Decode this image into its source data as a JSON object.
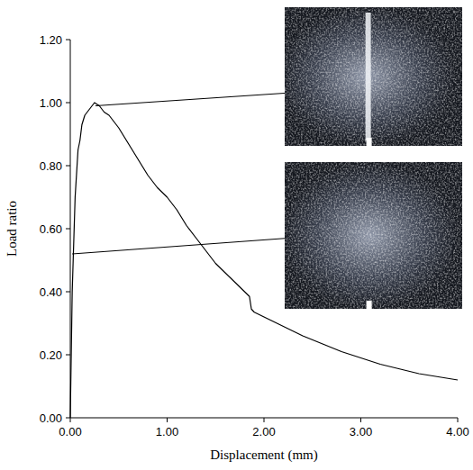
{
  "chart_data": {
    "type": "line",
    "x_label": "Displacement (mm)",
    "y_label": "Load ratio",
    "color": "#000000",
    "x": [
      0,
      0.02,
      0.05,
      0.08,
      0.1,
      0.12,
      0.15,
      0.2,
      0.25,
      0.3,
      0.35,
      0.4,
      0.5,
      0.6,
      0.7,
      0.8,
      0.9,
      1.0,
      1.1,
      1.2,
      1.3,
      1.4,
      1.5,
      1.6,
      1.7,
      1.8,
      1.85,
      1.87,
      1.9,
      2.0,
      2.2,
      2.4,
      2.6,
      2.8,
      3.0,
      3.2,
      3.4,
      3.6,
      3.8,
      4.0
    ],
    "values": [
      0,
      0.4,
      0.7,
      0.85,
      0.88,
      0.93,
      0.96,
      0.98,
      1.0,
      0.99,
      0.97,
      0.96,
      0.92,
      0.87,
      0.82,
      0.77,
      0.73,
      0.7,
      0.66,
      0.61,
      0.57,
      0.53,
      0.49,
      0.46,
      0.43,
      0.4,
      0.385,
      0.345,
      0.335,
      0.32,
      0.29,
      0.26,
      0.235,
      0.21,
      0.19,
      0.17,
      0.155,
      0.14,
      0.13,
      0.12
    ],
    "xlim": [
      0,
      4
    ],
    "ylim": [
      0,
      1.2
    ],
    "xticks": [
      {
        "value": 0,
        "label": "0.00"
      },
      {
        "value": 1,
        "label": "1.00"
      },
      {
        "value": 2,
        "label": "2.00"
      },
      {
        "value": 3,
        "label": "3.00"
      },
      {
        "value": 4,
        "label": "4.00"
      }
    ],
    "yticks": [
      {
        "value": 0,
        "label": "0.00"
      },
      {
        "value": 0.2,
        "label": "0.20"
      },
      {
        "value": 0.4,
        "label": "0.40"
      },
      {
        "value": 0.6,
        "label": "0.60"
      },
      {
        "value": 0.8,
        "label": "0.80"
      },
      {
        "value": 1.0,
        "label": "1.00"
      },
      {
        "value": 1.2,
        "label": "1.20"
      }
    ],
    "callouts": [
      {
        "x": 0.26,
        "y": 0.99
      },
      {
        "x": 0.02,
        "y": 0.52
      }
    ]
  }
}
